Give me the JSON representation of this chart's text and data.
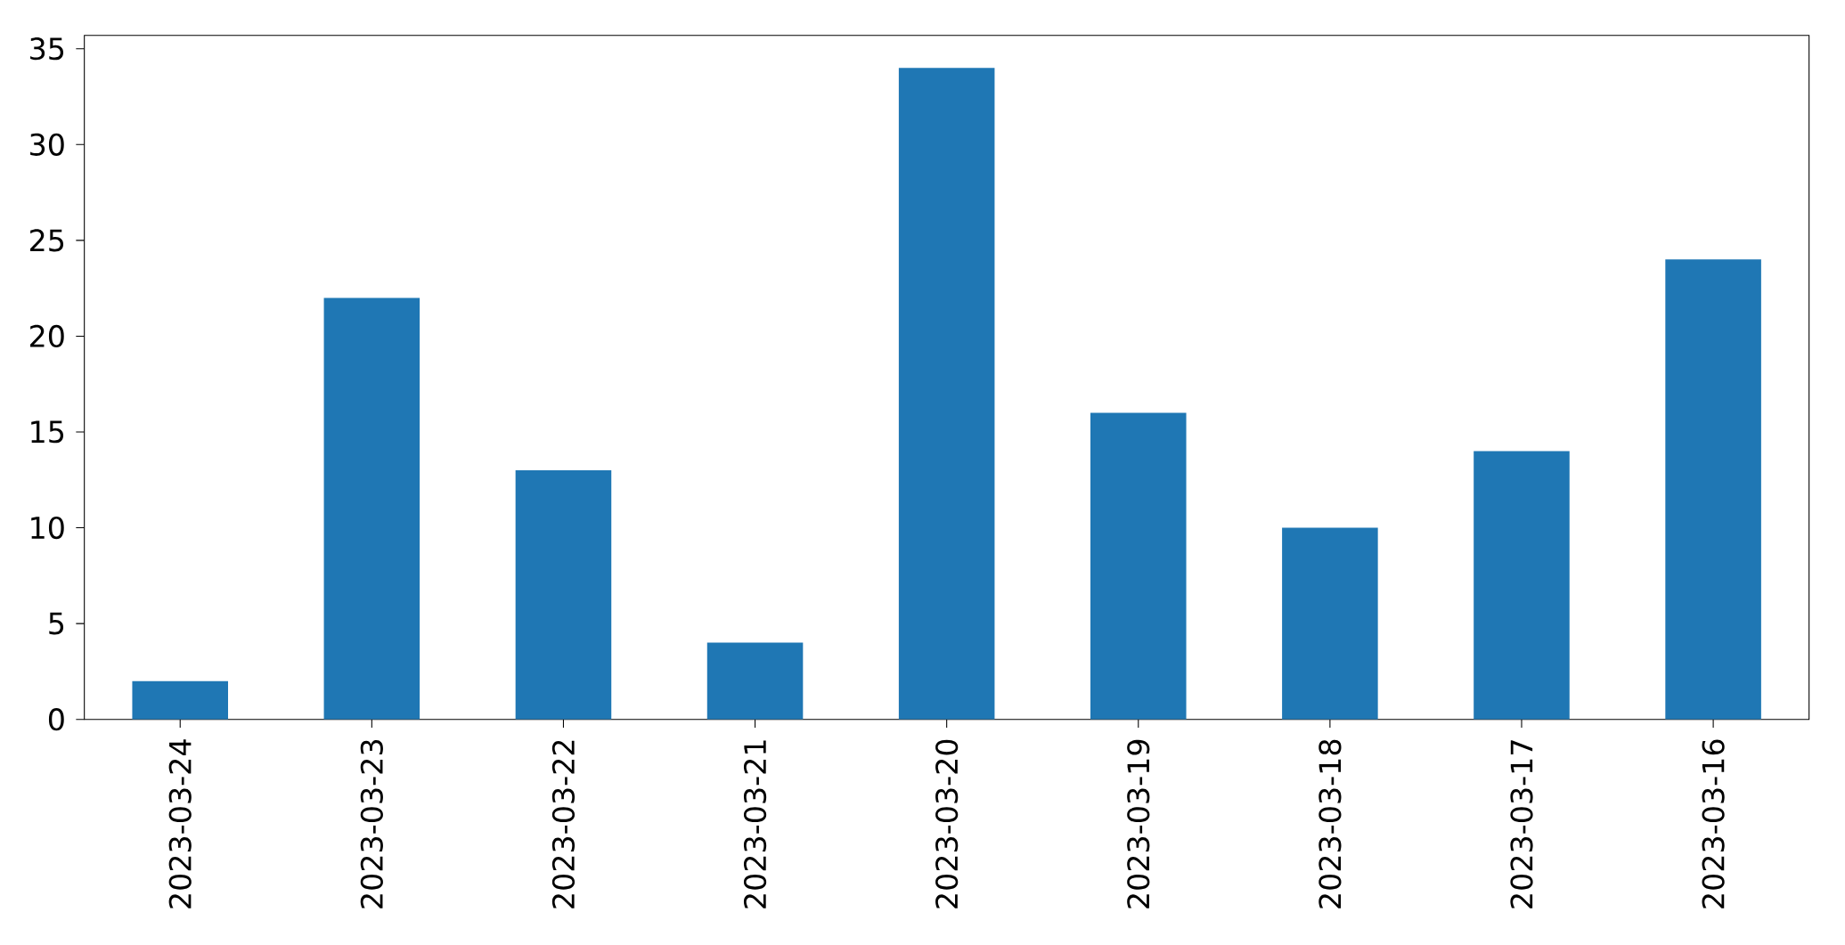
{
  "chart_data": {
    "type": "bar",
    "categories": [
      "2023-03-24",
      "2023-03-23",
      "2023-03-22",
      "2023-03-21",
      "2023-03-20",
      "2023-03-19",
      "2023-03-18",
      "2023-03-17",
      "2023-03-16"
    ],
    "values": [
      2,
      22,
      13,
      4,
      34,
      16,
      10,
      14,
      24
    ],
    "color": "#1f77b4",
    "ylim": [
      0,
      35.7
    ],
    "yticks": [
      0,
      5,
      10,
      15,
      20,
      25,
      30,
      35
    ]
  }
}
